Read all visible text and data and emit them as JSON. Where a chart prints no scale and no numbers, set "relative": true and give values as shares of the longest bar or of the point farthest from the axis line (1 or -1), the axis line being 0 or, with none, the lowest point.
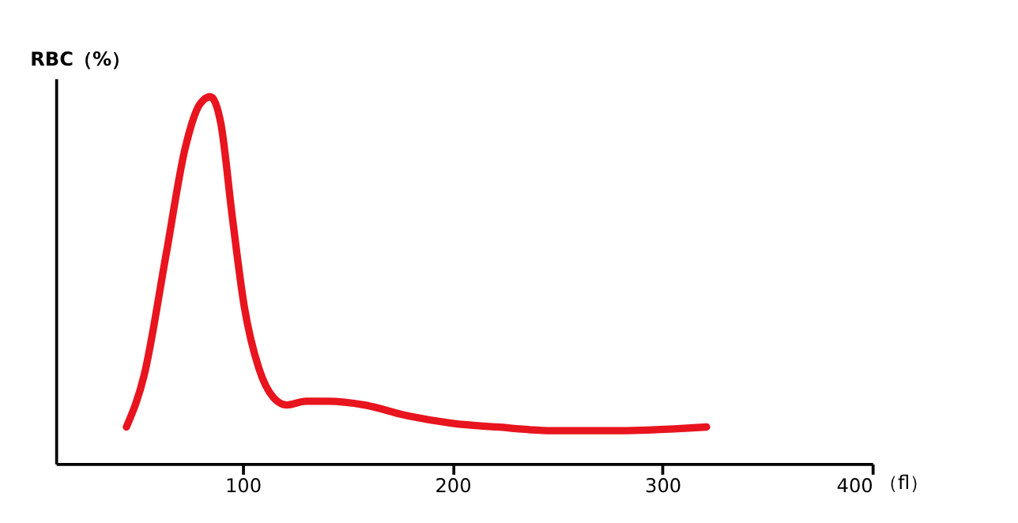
{
  "chart_data": {
    "type": "line",
    "relative": true,
    "ylabel": "RBC（%）",
    "xlabel": "（fl）",
    "xlim": [
      11,
      400
    ],
    "xticks": [
      100,
      200,
      300,
      400
    ],
    "grid": false,
    "marker": "none",
    "line_style": "solid",
    "series": [
      {
        "color": "#e8141e",
        "x": [
          44.6,
          53,
          63.5,
          72.6,
          79.6,
          84.6,
          89.5,
          95.1,
          100.7,
          107.7,
          114.7,
          121,
          130,
          140.7,
          158,
          179,
          200,
          221,
          249,
          277.5,
          305.6,
          321
        ],
        "values": [
          0.1,
          0.24,
          0.57,
          0.86,
          0.98,
          1.0,
          0.93,
          0.67,
          0.43,
          0.26,
          0.18,
          0.16,
          0.17,
          0.17,
          0.16,
          0.13,
          0.11,
          0.1,
          0.09,
          0.09,
          0.095,
          0.1
        ]
      }
    ]
  }
}
